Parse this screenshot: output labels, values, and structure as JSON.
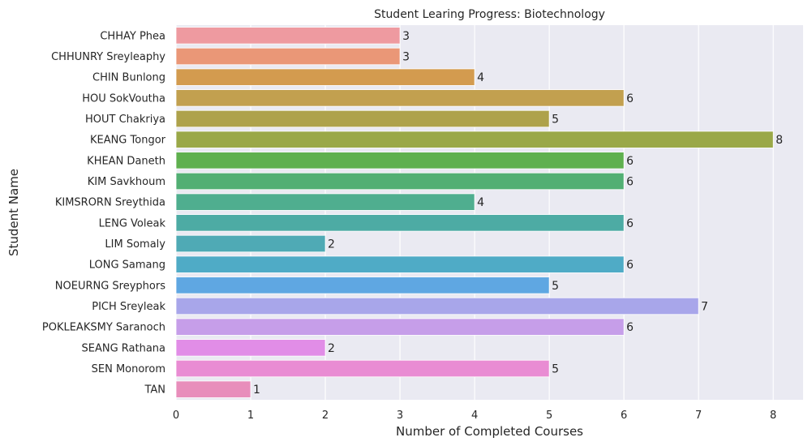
{
  "chart_data": {
    "type": "bar",
    "orientation": "horizontal",
    "title": "Student Learing Progress: Biotechnology",
    "xlabel": "Number of Completed Courses",
    "ylabel": "Student Name",
    "xlim": [
      0,
      8.4
    ],
    "xticks": [
      0,
      1,
      2,
      3,
      4,
      5,
      6,
      7,
      8
    ],
    "grid": true,
    "categories": [
      "CHHAY Phea",
      "CHHUNRY Sreyleaphy",
      "CHIN Bunlong",
      "HOU SokVoutha",
      "HOUT Chakriya",
      "KEANG Tongor",
      "KHEAN Daneth",
      "KIM Savkhoum",
      "KIMSRORN Sreythida",
      "LENG Voleak",
      "LIM Somaly",
      "LONG Samang",
      "NOEURNG Sreyphors",
      "PICH Sreyleak",
      "POKLEAKSMY Saranoch",
      "SEANG Rathana",
      "SEN Monorom",
      "TAN"
    ],
    "values": [
      3,
      3,
      4,
      6,
      5,
      8,
      6,
      6,
      4,
      6,
      2,
      6,
      5,
      7,
      6,
      2,
      5,
      1
    ],
    "colors": [
      "#ee9aa0",
      "#ea9777",
      "#d39b4f",
      "#c2a04f",
      "#aea24b",
      "#9aa848",
      "#5fb04f",
      "#52af73",
      "#4fae8f",
      "#4daba4",
      "#4faab5",
      "#4fabc6",
      "#5fa7e2",
      "#a8a6ea",
      "#c69ee9",
      "#e18de7",
      "#e98cd3",
      "#e88ebb"
    ],
    "style": {
      "background": "#eaeaf2",
      "grid_color": "#ffffff",
      "text_color": "#262626"
    }
  }
}
